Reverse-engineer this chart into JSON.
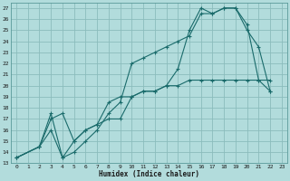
{
  "xlabel": "Humidex (Indice chaleur)",
  "ylabel": "",
  "bg_color": "#b2dcdc",
  "grid_color": "#8bbcbc",
  "line_color": "#1a6b6b",
  "xlim": [
    -0.5,
    23.5
  ],
  "ylim": [
    13,
    27.5
  ],
  "xticks": [
    0,
    1,
    2,
    3,
    4,
    5,
    6,
    7,
    8,
    9,
    10,
    11,
    12,
    13,
    14,
    15,
    16,
    17,
    18,
    19,
    20,
    21,
    22,
    23
  ],
  "yticks": [
    13,
    14,
    15,
    16,
    17,
    18,
    19,
    20,
    21,
    22,
    23,
    24,
    25,
    26,
    27
  ],
  "series": [
    {
      "x": [
        0,
        2,
        3,
        4,
        5,
        6,
        7,
        8,
        9,
        10,
        11,
        12,
        13,
        14,
        15,
        16,
        17,
        18,
        19,
        20,
        21,
        22
      ],
      "y": [
        13.5,
        14.5,
        17.5,
        13.5,
        14.0,
        15.0,
        16.0,
        17.5,
        18.5,
        22.0,
        22.5,
        23.0,
        23.5,
        24.0,
        24.5,
        26.5,
        26.5,
        27.0,
        27.0,
        25.5,
        20.5,
        19.5
      ]
    },
    {
      "x": [
        0,
        2,
        3,
        4,
        5,
        6,
        7,
        8,
        9,
        10,
        11,
        12,
        13,
        14,
        15,
        16,
        17,
        18,
        19,
        20,
        21,
        22
      ],
      "y": [
        13.5,
        14.5,
        16.0,
        13.5,
        15.0,
        16.0,
        16.5,
        17.0,
        17.0,
        19.0,
        19.5,
        19.5,
        20.0,
        21.5,
        25.0,
        27.0,
        26.5,
        27.0,
        27.0,
        25.0,
        23.5,
        19.5
      ]
    },
    {
      "x": [
        0,
        2,
        3,
        4,
        5,
        6,
        7,
        8,
        9,
        10,
        11,
        12,
        13,
        14,
        15,
        16,
        17,
        18,
        19,
        20,
        21,
        22
      ],
      "y": [
        13.5,
        14.5,
        17.0,
        17.5,
        15.0,
        16.0,
        16.5,
        18.5,
        19.0,
        19.0,
        19.5,
        19.5,
        20.0,
        20.0,
        20.5,
        20.5,
        20.5,
        20.5,
        20.5,
        20.5,
        20.5,
        20.5
      ]
    }
  ]
}
